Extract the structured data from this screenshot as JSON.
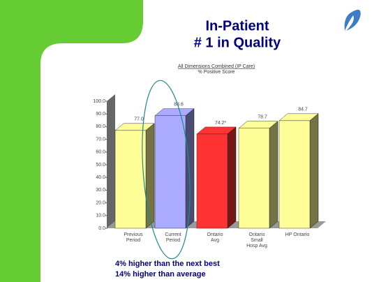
{
  "title_lines": [
    "In-Patient",
    "# 1 in Quality"
  ],
  "chart_data": {
    "type": "bar3d",
    "title": "All Dimensions Combined (IP Care)",
    "subtitle": "% Positive Score",
    "categories": [
      [
        "Previous",
        "Period"
      ],
      [
        "Current",
        "Period"
      ],
      [
        "Ontario",
        "Avg"
      ],
      [
        "Ontario",
        "Small",
        "Hosp Avg"
      ],
      [
        "HP Ontario"
      ]
    ],
    "values": [
      77.0,
      88.6,
      74.2,
      78.7,
      84.7
    ],
    "value_labels": [
      "77.0",
      "88.6",
      "74.2*",
      "78.7",
      "84.7"
    ],
    "colors": [
      "#ffff99",
      "#aaaaff",
      "#ff3333",
      "#ffff99",
      "#ffff99"
    ],
    "ylim": [
      0,
      100
    ],
    "yticks": [
      {
        "value": 0,
        "label": "0.0"
      },
      {
        "value": 10,
        "label": "10.0"
      },
      {
        "value": 20,
        "label": "20.0"
      },
      {
        "value": 30,
        "label": "30.0"
      },
      {
        "value": 40,
        "label": "40.0"
      },
      {
        "value": 50,
        "label": "50.0"
      },
      {
        "value": 60,
        "label": "60.0"
      },
      {
        "value": 70,
        "label": "70.0"
      },
      {
        "value": 80,
        "label": "80.0"
      },
      {
        "value": 90,
        "label": "90.0"
      },
      {
        "value": 100,
        "label": "100.0"
      }
    ]
  },
  "annotations": [
    "4% higher than the next best",
    "14% higher than average"
  ]
}
